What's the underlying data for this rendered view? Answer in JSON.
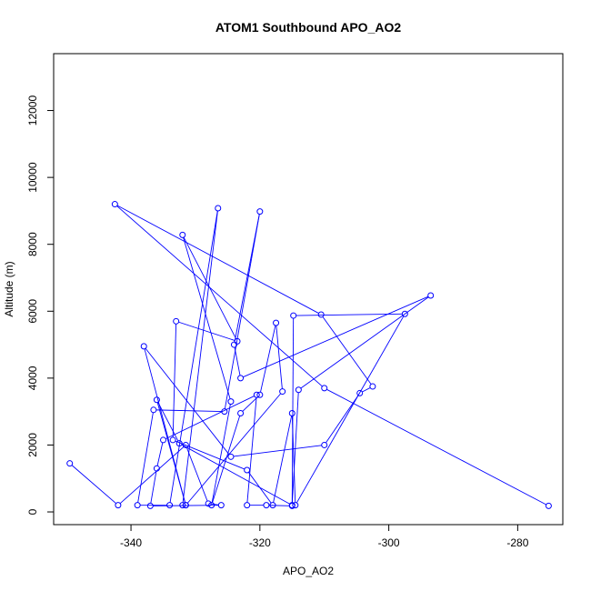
{
  "chart_data": {
    "type": "line",
    "title": "ATOM1 Southbound APO_AO2",
    "xlabel": "APO_AO2",
    "ylabel": "Altitude (m)",
    "xlim": [
      -352,
      -273
    ],
    "ylim": [
      -380,
      13700
    ],
    "x_ticks": [
      -340,
      -320,
      -300,
      -280
    ],
    "x_tick_labels": [
      "-340",
      "-320",
      "-300",
      "-280"
    ],
    "y_ticks": [
      0,
      2000,
      4000,
      6000,
      8000,
      10000,
      12000
    ],
    "y_tick_labels": [
      "0",
      "2000",
      "4000",
      "6000",
      "8000",
      "10000",
      "12000"
    ],
    "series": [
      {
        "color": "#0000ff",
        "marker": "open-circle",
        "x": [
          -275.2,
          -310,
          -342.5,
          -310.5,
          -302.5,
          -304.5,
          -310,
          -324.5,
          -338,
          -331.5,
          -336,
          -332.5,
          -315,
          -314,
          -293.5,
          -323,
          -324,
          -320,
          -325.5,
          -336.5,
          -339,
          -334,
          -326.5,
          -332,
          -331.5,
          -316.5,
          -317.5,
          -320,
          -323,
          -327.5,
          -324.5,
          -332,
          -323.5,
          -333,
          -333.5,
          -322,
          -318,
          -315,
          -314.5,
          -297.5,
          -314.8,
          -315,
          -319,
          -322,
          -320.5,
          -335,
          -336,
          -337,
          -326,
          -328,
          -331.5,
          -342,
          -349.5
        ],
        "y": [
          180,
          3700,
          9200,
          5900,
          3750,
          3550,
          2000,
          1650,
          4950,
          200,
          3350,
          2050,
          200,
          3650,
          6470,
          4000,
          5000,
          8980,
          3000,
          3050,
          200,
          200,
          9080,
          200,
          200,
          3600,
          5650,
          3500,
          2950,
          200,
          3300,
          8280,
          5100,
          5700,
          2150,
          1250,
          200,
          2950,
          200,
          5920,
          5870,
          180,
          200,
          200,
          3500,
          2150,
          1300,
          180,
          200,
          250,
          2000,
          200,
          1450
        ]
      }
    ]
  }
}
